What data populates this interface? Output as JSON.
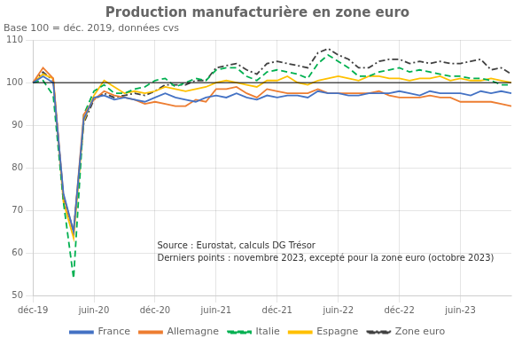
{
  "chart_data": {
    "type": "line",
    "title": "Production manufacturière en zone euro",
    "subtitle": "Base 100 = déc. 2019, données cvs",
    "annotation": "Source : Eurostat, calculs DG Trésor\nDerniers points : novembre 2023, excepté pour la zone euro (octobre 2023)",
    "categories": [
      "déc-19",
      null,
      null,
      null,
      null,
      null,
      "juin-20",
      null,
      null,
      null,
      null,
      null,
      "déc-20",
      null,
      null,
      null,
      null,
      null,
      "juin-21",
      null,
      null,
      null,
      null,
      null,
      "déc-21",
      null,
      null,
      null,
      null,
      null,
      "juin-22",
      null,
      null,
      null,
      null,
      null,
      "déc-22",
      null,
      null,
      null,
      null,
      null,
      "juin-23",
      null,
      null,
      null,
      null,
      null
    ],
    "series": [
      {
        "name": "France",
        "color": "#4472C4",
        "line_style": "solid",
        "values": [
          100.0,
          101.5,
          100.0,
          74.0,
          65.0,
          91.5,
          96.5,
          97.0,
          96.0,
          96.5,
          96.0,
          95.5,
          96.5,
          97.5,
          96.5,
          96.0,
          95.5,
          96.5,
          97.0,
          96.5,
          97.5,
          96.5,
          96.0,
          97.0,
          96.5,
          97.0,
          97.0,
          96.5,
          98.0,
          97.5,
          97.5,
          97.0,
          97.0,
          97.5,
          97.5,
          97.5,
          98.0,
          97.5,
          97.0,
          98.0,
          97.5,
          97.5,
          97.5,
          97.0,
          98.0,
          97.5,
          98.0,
          97.5
        ]
      },
      {
        "name": "Allemagne",
        "color": "#ED7D31",
        "line_style": "solid",
        "values": [
          100.0,
          103.5,
          101.0,
          73.5,
          65.0,
          92.5,
          96.0,
          98.0,
          97.0,
          96.5,
          96.0,
          95.0,
          95.5,
          95.0,
          94.5,
          94.5,
          96.0,
          95.5,
          98.5,
          98.5,
          99.0,
          97.5,
          96.5,
          98.5,
          98.0,
          97.5,
          97.5,
          97.5,
          98.5,
          97.5,
          97.5,
          97.5,
          97.5,
          97.5,
          98.0,
          97.0,
          96.5,
          96.5,
          96.5,
          97.0,
          96.5,
          96.5,
          95.5,
          95.5,
          95.5,
          95.5,
          95.0,
          94.5
        ]
      },
      {
        "name": "Italie",
        "color": "#00B050",
        "line_style": "dashed",
        "values": [
          100.0,
          100.5,
          97.0,
          72.0,
          54.0,
          92.5,
          98.0,
          99.5,
          97.5,
          97.5,
          98.5,
          99.0,
          100.5,
          101.0,
          99.0,
          100.0,
          101.0,
          100.5,
          103.0,
          103.5,
          103.5,
          101.5,
          100.5,
          102.5,
          103.0,
          102.5,
          102.0,
          101.0,
          104.5,
          106.5,
          105.0,
          103.5,
          101.5,
          101.5,
          102.5,
          103.0,
          103.5,
          102.5,
          103.0,
          102.5,
          102.0,
          101.5,
          101.5,
          101.0,
          101.0,
          100.5,
          99.5,
          99.5
        ]
      },
      {
        "name": "Espagne",
        "color": "#FFC000",
        "line_style": "solid",
        "values": [
          100.0,
          102.0,
          101.0,
          72.0,
          63.5,
          91.0,
          97.0,
          100.5,
          99.0,
          97.5,
          98.0,
          97.5,
          98.0,
          99.0,
          98.5,
          98.0,
          98.5,
          99.0,
          100.0,
          100.5,
          100.0,
          99.5,
          99.0,
          100.5,
          100.5,
          101.5,
          100.0,
          99.5,
          100.5,
          101.0,
          101.5,
          101.0,
          100.5,
          101.5,
          101.5,
          101.0,
          101.0,
          100.5,
          101.0,
          101.0,
          101.5,
          100.5,
          101.0,
          100.5,
          100.5,
          101.0,
          100.5,
          100.0
        ]
      },
      {
        "name": "Zone euro",
        "color": "#404040",
        "line_style": "dashdot",
        "values": [
          100.0,
          102.5,
          100.5,
          73.0,
          65.0,
          90.5,
          96.0,
          97.5,
          96.5,
          97.0,
          97.5,
          97.0,
          98.0,
          99.5,
          99.5,
          99.5,
          100.5,
          100.5,
          103.5,
          104.0,
          104.5,
          103.0,
          102.0,
          104.5,
          105.0,
          104.5,
          104.0,
          103.5,
          107.0,
          108.0,
          106.5,
          105.5,
          103.5,
          103.5,
          105.0,
          105.5,
          105.5,
          104.5,
          105.0,
          104.5,
          105.0,
          104.5,
          104.5,
          105.0,
          105.5,
          103.0,
          103.5,
          102.0
        ]
      }
    ],
    "reference_line": 100,
    "ylim": [
      50,
      110
    ],
    "yticks": [
      50,
      60,
      70,
      80,
      90,
      100,
      110
    ],
    "grid": true,
    "legend": "bottom"
  }
}
